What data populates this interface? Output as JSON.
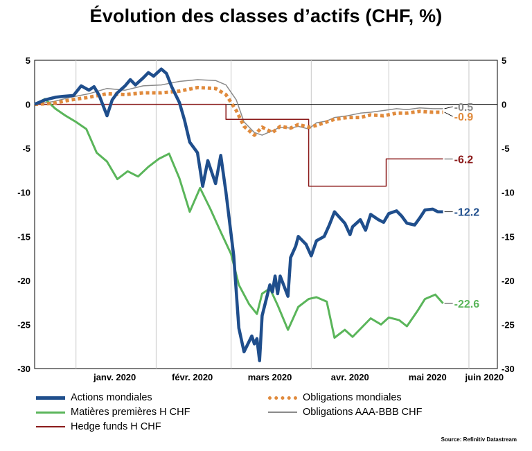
{
  "chart_data": {
    "type": "line",
    "title": "Évolution des classes d’actifs (CHF, %)",
    "ylim": [
      -30,
      5
    ],
    "yticks": [
      5,
      0,
      -5,
      -10,
      -15,
      -20,
      -25,
      -30
    ],
    "ytick_labels_left": [
      "5",
      "0",
      "-5",
      "-10",
      "-15",
      "-20",
      "-25",
      "-30"
    ],
    "ytick_labels_right": [
      "5",
      "0",
      "-5",
      "-10",
      "-15",
      "-20",
      "-25",
      "-30"
    ],
    "xlim": [
      "2019-12-16",
      "2020-06-12"
    ],
    "xtick_labels": [
      "janv. 2020",
      "févr. 2020",
      "mars 2020",
      "avr. 2020",
      "mai 2020",
      "juin 2020"
    ],
    "grid": true,
    "legend_position": "bottom",
    "source": "Source: Refinitiv Datastream",
    "series": [
      {
        "name": "Actions mondiales",
        "color": "#1f4e8c",
        "style": "solid-thick",
        "end_label": "-12.2",
        "x": [
          "2019-12-16",
          "2019-12-20",
          "2019-12-24",
          "2019-12-27",
          "2019-12-31",
          "2020-01-03",
          "2020-01-06",
          "2020-01-08",
          "2020-01-10",
          "2020-01-13",
          "2020-01-15",
          "2020-01-17",
          "2020-01-20",
          "2020-01-22",
          "2020-01-24",
          "2020-01-27",
          "2020-01-29",
          "2020-01-31",
          "2020-02-03",
          "2020-02-05",
          "2020-02-07",
          "2020-02-10",
          "2020-02-12",
          "2020-02-14",
          "2020-02-17",
          "2020-02-19",
          "2020-02-21",
          "2020-02-24",
          "2020-02-26",
          "2020-02-28",
          "2020-03-02",
          "2020-03-04",
          "2020-03-06",
          "2020-03-09",
          "2020-03-10",
          "2020-03-11",
          "2020-03-12",
          "2020-03-13",
          "2020-03-16",
          "2020-03-17",
          "2020-03-18",
          "2020-03-19",
          "2020-03-20",
          "2020-03-23",
          "2020-03-24",
          "2020-03-26",
          "2020-03-27",
          "2020-03-30",
          "2020-04-01",
          "2020-04-03",
          "2020-04-06",
          "2020-04-08",
          "2020-04-10",
          "2020-04-14",
          "2020-04-16",
          "2020-04-17",
          "2020-04-20",
          "2020-04-22",
          "2020-04-24",
          "2020-04-27",
          "2020-04-29",
          "2020-05-01",
          "2020-05-04",
          "2020-05-06",
          "2020-05-08",
          "2020-05-11",
          "2020-05-13",
          "2020-05-15",
          "2020-05-18",
          "2020-05-20",
          "2020-05-22"
        ],
        "values": [
          0.0,
          0.5,
          0.8,
          0.9,
          1.0,
          2.1,
          1.6,
          2.0,
          1.0,
          -1.3,
          0.5,
          1.3,
          2.1,
          2.8,
          2.2,
          3.0,
          3.6,
          3.2,
          4.0,
          3.5,
          2.0,
          0.2,
          -1.8,
          -4.3,
          -5.5,
          -9.3,
          -6.4,
          -9.0,
          -5.8,
          -10.0,
          -17.2,
          -25.4,
          -28.1,
          -26.3,
          -27.2,
          -26.6,
          -29.1,
          -24.0,
          -20.5,
          -21.3,
          -19.5,
          -21.5,
          -19.5,
          -21.8,
          -17.4,
          -16.1,
          -15.0,
          -15.9,
          -17.2,
          -15.5,
          -15.0,
          -13.7,
          -12.2,
          -13.5,
          -14.8,
          -13.9,
          -13.1,
          -14.3,
          -12.5,
          -13.1,
          -13.4,
          -12.4,
          -12.1,
          -12.7,
          -13.5,
          -13.7,
          -12.9,
          -12.0,
          -11.9,
          -12.2,
          -12.2
        ]
      },
      {
        "name": "Obligations mondiales",
        "color": "#e08a3c",
        "style": "dotted-thick",
        "end_label": "-0.9",
        "x": [
          "2019-12-16",
          "2019-12-23",
          "2019-12-30",
          "2020-01-06",
          "2020-01-13",
          "2020-01-20",
          "2020-01-27",
          "2020-02-03",
          "2020-02-10",
          "2020-02-17",
          "2020-02-24",
          "2020-02-28",
          "2020-03-03",
          "2020-03-06",
          "2020-03-10",
          "2020-03-13",
          "2020-03-17",
          "2020-03-20",
          "2020-03-24",
          "2020-03-27",
          "2020-03-31",
          "2020-04-03",
          "2020-04-07",
          "2020-04-10",
          "2020-04-15",
          "2020-04-20",
          "2020-04-24",
          "2020-04-29",
          "2020-05-04",
          "2020-05-08",
          "2020-05-13",
          "2020-05-18",
          "2020-05-22"
        ],
        "values": [
          0.0,
          0.1,
          0.5,
          0.8,
          1.2,
          1.1,
          1.3,
          1.3,
          1.5,
          1.9,
          1.8,
          1.1,
          -0.7,
          -2.5,
          -3.5,
          -2.6,
          -3.2,
          -2.5,
          -2.7,
          -2.3,
          -2.6,
          -2.4,
          -2.0,
          -1.7,
          -1.5,
          -1.5,
          -1.2,
          -1.3,
          -1.0,
          -1.0,
          -0.8,
          -0.9,
          -0.9
        ]
      },
      {
        "name": "Matières premières H CHF",
        "color": "#5ab55a",
        "style": "solid",
        "end_label": "-22.6",
        "x": [
          "2019-12-16",
          "2019-12-20",
          "2019-12-24",
          "2019-12-28",
          "2020-01-01",
          "2020-01-05",
          "2020-01-09",
          "2020-01-13",
          "2020-01-17",
          "2020-01-21",
          "2020-01-25",
          "2020-01-29",
          "2020-02-02",
          "2020-02-06",
          "2020-02-10",
          "2020-02-14",
          "2020-02-18",
          "2020-02-22",
          "2020-02-26",
          "2020-03-01",
          "2020-03-04",
          "2020-03-08",
          "2020-03-11",
          "2020-03-13",
          "2020-03-16",
          "2020-03-19",
          "2020-03-23",
          "2020-03-27",
          "2020-03-31",
          "2020-04-03",
          "2020-04-07",
          "2020-04-10",
          "2020-04-14",
          "2020-04-17",
          "2020-04-21",
          "2020-04-24",
          "2020-04-28",
          "2020-05-01",
          "2020-05-05",
          "2020-05-08",
          "2020-05-12",
          "2020-05-15",
          "2020-05-19",
          "2020-05-22"
        ],
        "values": [
          0.0,
          0.6,
          -0.5,
          -1.3,
          -2.0,
          -2.8,
          -5.5,
          -6.5,
          -8.5,
          -7.6,
          -8.2,
          -7.1,
          -6.2,
          -5.6,
          -8.4,
          -12.2,
          -9.5,
          -11.9,
          -14.5,
          -17.0,
          -20.5,
          -22.7,
          -23.8,
          -21.5,
          -20.9,
          -22.8,
          -25.6,
          -23.0,
          -22.1,
          -21.9,
          -22.4,
          -26.5,
          -25.6,
          -26.4,
          -25.2,
          -24.3,
          -25.0,
          -24.2,
          -24.5,
          -25.2,
          -23.5,
          -22.1,
          -21.6,
          -22.6
        ]
      },
      {
        "name": "Obligations AAA-BBB CHF",
        "color": "#8a8a8a",
        "style": "solid-thin",
        "end_label": "-0.5",
        "x": [
          "2019-12-16",
          "2019-12-23",
          "2019-12-30",
          "2020-01-06",
          "2020-01-13",
          "2020-01-20",
          "2020-01-27",
          "2020-02-03",
          "2020-02-10",
          "2020-02-17",
          "2020-02-24",
          "2020-02-28",
          "2020-03-03",
          "2020-03-06",
          "2020-03-10",
          "2020-03-13",
          "2020-03-17",
          "2020-03-20",
          "2020-03-24",
          "2020-03-27",
          "2020-03-31",
          "2020-04-03",
          "2020-04-07",
          "2020-04-10",
          "2020-04-15",
          "2020-04-20",
          "2020-04-24",
          "2020-04-29",
          "2020-05-04",
          "2020-05-08",
          "2020-05-13",
          "2020-05-18",
          "2020-05-22"
        ],
        "values": [
          0.0,
          0.3,
          0.8,
          1.2,
          1.8,
          1.6,
          2.1,
          2.2,
          2.6,
          2.8,
          2.7,
          2.2,
          0.5,
          -2.0,
          -3.2,
          -3.5,
          -3.0,
          -2.6,
          -2.7,
          -2.5,
          -2.8,
          -2.1,
          -1.9,
          -1.5,
          -1.3,
          -1.0,
          -0.9,
          -0.7,
          -0.5,
          -0.6,
          -0.4,
          -0.5,
          -0.5
        ]
      },
      {
        "name": "Hedge funds H CHF",
        "color": "#8b1a1a",
        "style": "step",
        "end_label": "-6.2",
        "x": [
          "2019-12-16",
          "2020-02-28",
          "2020-02-28",
          "2020-03-31",
          "2020-03-31",
          "2020-04-30",
          "2020-04-30",
          "2020-05-22"
        ],
        "values": [
          0.0,
          0.0,
          -1.7,
          -1.7,
          -9.3,
          -9.3,
          -6.2,
          -6.2
        ]
      }
    ]
  },
  "legend": [
    {
      "label": "Actions mondiales",
      "color": "#1f4e8c",
      "style": "solid-thick"
    },
    {
      "label": "Obligations mondiales",
      "color": "#e08a3c",
      "style": "dotted-thick"
    },
    {
      "label": "Matières premières H CHF",
      "color": "#5ab55a",
      "style": "solid"
    },
    {
      "label": "Obligations AAA-BBB CHF",
      "color": "#8a8a8a",
      "style": "solid-thin"
    },
    {
      "label": "Hedge funds H CHF",
      "color": "#8b1a1a",
      "style": "step"
    }
  ]
}
